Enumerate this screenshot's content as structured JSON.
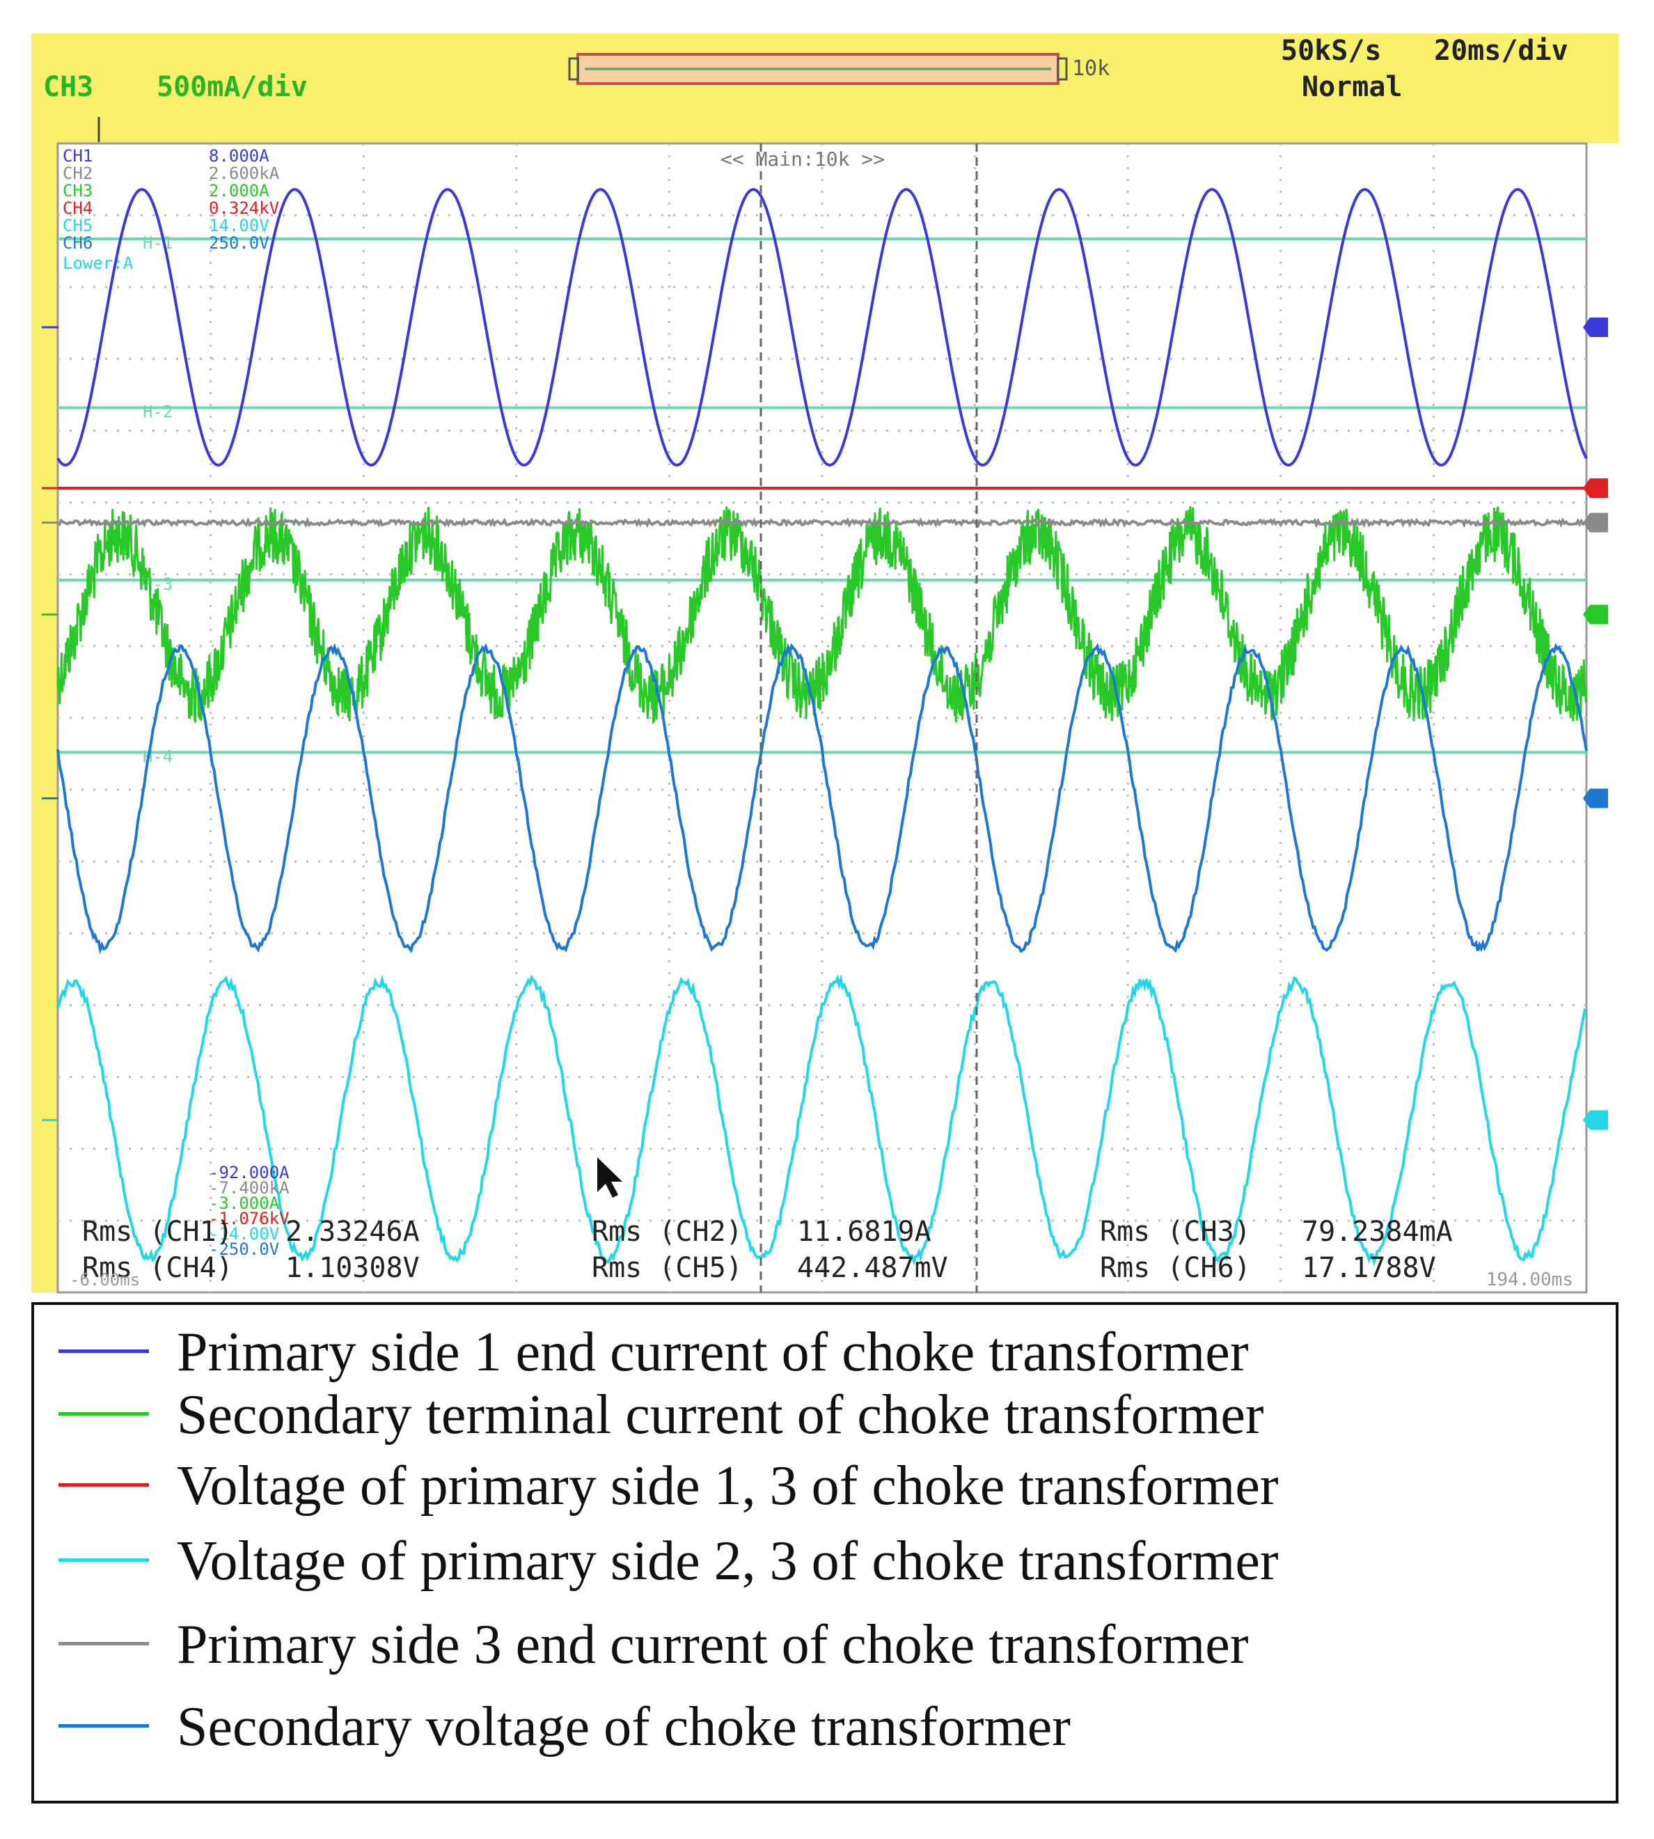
{
  "chart_data": {
    "type": "line",
    "header": {
      "channel": "CH3",
      "scale": "500mA/div",
      "memory_label": "10k",
      "sample_rate": "50kS/s",
      "timebase": "20ms/div",
      "trigger_mode": "Normal",
      "zoom_label": "<< Main:10k >>"
    },
    "channel_scales_top": [
      {
        "label": "CH1",
        "value": "8.000A",
        "color": "#3a3ad6"
      },
      {
        "label": "CH2",
        "value": "2.600kA",
        "color": "#8a8a8a"
      },
      {
        "label": "CH3",
        "value": "2.000A",
        "color": "#28c828"
      },
      {
        "label": "CH4",
        "value": "0.324kV",
        "color": "#e02020"
      },
      {
        "label": "CH5",
        "value": "14.00V",
        "color": "#22d8e8"
      },
      {
        "label": "CH6",
        "value": "250.0V",
        "color": "#1e78d2"
      }
    ],
    "extra_label": "Lower:A",
    "channel_scales_bottom": [
      "-92.000A",
      "-7.400kA",
      "-3.000A",
      "-1.076kV",
      "-14.00V",
      "-250.0V"
    ],
    "marker_labels": [
      "H-1",
      "H-2",
      "H-3",
      "H-4"
    ],
    "time_start": "-6.00ms",
    "time_end": "194.00ms",
    "measurements": [
      {
        "label": "Rms (CH1)",
        "value": "2.33246A"
      },
      {
        "label": "Rms (CH2)",
        "value": "11.6819A"
      },
      {
        "label": "Rms (CH3)",
        "value": "79.2384mA"
      },
      {
        "label": "Rms (CH4)",
        "value": "1.10308V"
      },
      {
        "label": "Rms (CH5)",
        "value": "442.487mV"
      },
      {
        "label": "Rms (CH6)",
        "value": "17.1788V"
      }
    ],
    "x_range_ms": [
      -6,
      194
    ],
    "frequency_hz": 50,
    "grid": true,
    "legend_position": "bottom",
    "series": [
      {
        "name": "Primary side 1 end current of choke transformer",
        "color": "#3a3ad6",
        "wave": "sine",
        "level": 0.16,
        "amplitude": 0.12,
        "noise": 0
      },
      {
        "name": "Secondary terminal current of choke transformer",
        "color": "#28c828",
        "wave": "noisy-sine",
        "level": 0.41,
        "amplitude": 0.07,
        "noise": 0.025
      },
      {
        "name": "Voltage of primary side 1, 3 of choke transformer",
        "color": "#e02020",
        "wave": "flat",
        "level": 0.3,
        "amplitude": 0,
        "noise": 0
      },
      {
        "name": "Voltage of primary side 2, 3 of choke transformer",
        "color": "#22d8e8",
        "wave": "sine",
        "level": 0.85,
        "amplitude": 0.12,
        "noise": 0.004
      },
      {
        "name": "Primary side 3 end current of choke transformer",
        "color": "#8a8a8a",
        "wave": "flat",
        "level": 0.33,
        "amplitude": 0,
        "noise": 0.002
      },
      {
        "name": "Secondary voltage of choke transformer",
        "color": "#1e78d2",
        "wave": "sine",
        "level": 0.57,
        "amplitude": 0.13,
        "noise": 0.003
      }
    ]
  }
}
